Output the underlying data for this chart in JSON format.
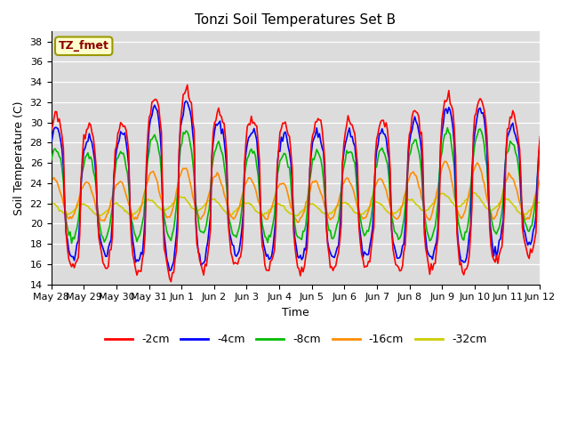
{
  "title": "Tonzi Soil Temperatures Set B",
  "xlabel": "Time",
  "ylabel": "Soil Temperature (C)",
  "ylim": [
    14,
    39
  ],
  "yticks": [
    14,
    16,
    18,
    20,
    22,
    24,
    26,
    28,
    30,
    32,
    34,
    36,
    38
  ],
  "annotation_text": "TZ_fmet",
  "annotation_color": "#8B0000",
  "annotation_bg": "#FFFFCC",
  "annotation_border": "#999900",
  "series_colors": {
    "-2cm": "#FF0000",
    "-4cm": "#0000FF",
    "-8cm": "#00BB00",
    "-16cm": "#FF8C00",
    "-32cm": "#CCCC00"
  },
  "x_tick_labels": [
    "May 28",
    "May 29",
    "May 30",
    "May 31",
    "Jun 1",
    "Jun 2",
    "Jun 3",
    "Jun 4",
    "Jun 5",
    "Jun 6",
    "Jun 7",
    "Jun 8",
    "Jun 9",
    "Jun 10",
    "Jun 11",
    "Jun 12"
  ],
  "background_color": "#DCDCDC",
  "figure_color": "#FFFFFF",
  "n_days": 15,
  "n_per_day": 24
}
